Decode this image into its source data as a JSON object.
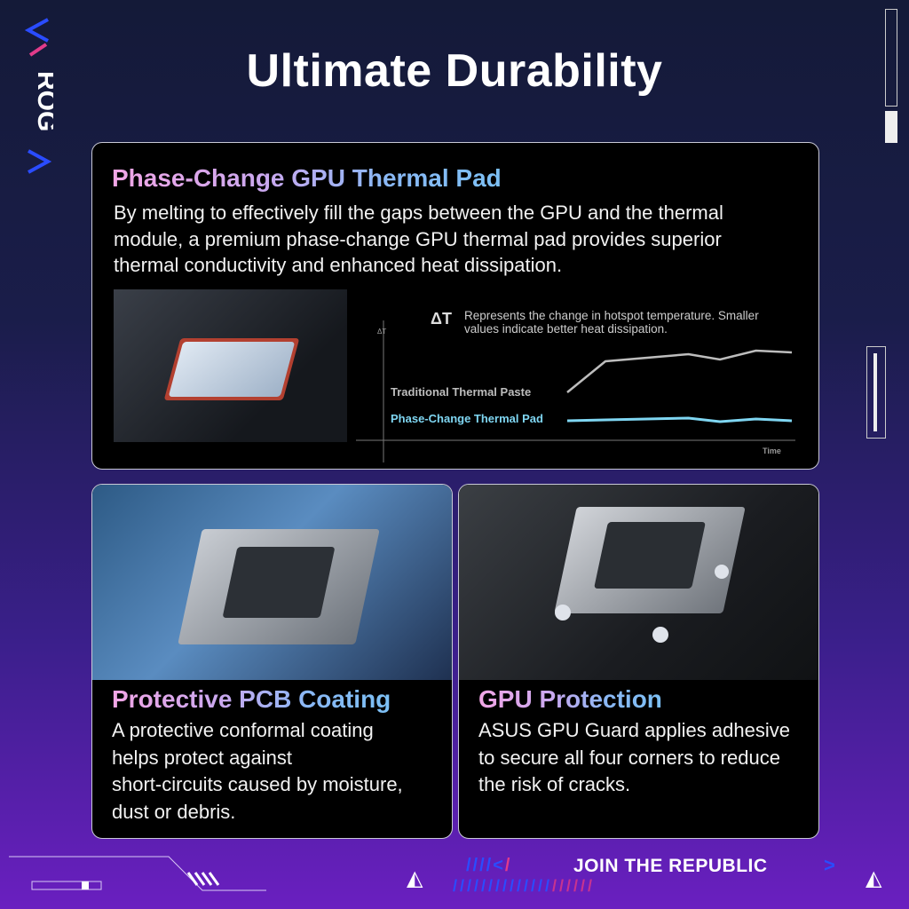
{
  "brand": {
    "logo_text": "ROG",
    "footer_slogan": "JOIN THE REPUBLIC"
  },
  "header": {
    "title": "Ultimate Durability"
  },
  "cards": [
    {
      "title_a": "Phase-Change GPU Thermal Pad",
      "body_lines": [
        "By melting to effectively fill the gaps between the GPU and the thermal",
        "module, a premium phase-change GPU thermal pad provides superior",
        "thermal conductivity and enhanced heat dissipation."
      ]
    },
    {
      "title_a": "Protective PCB Coating",
      "body_lines": [
        "A protective conformal coating",
        "helps protect against",
        "short-circuits caused by moisture,",
        "dust or debris."
      ]
    },
    {
      "title_a": "GPU Protection",
      "body_lines": [
        "ASUS GPU Guard applies adhesive",
        "to secure all four corners to reduce",
        "the risk of cracks."
      ]
    }
  ],
  "chart_data": {
    "type": "line",
    "legend_symbol": "ΔT",
    "note": "Represents the change in hotspot temperature. Smaller values indicate better heat dissipation.",
    "note_lines": [
      "Represents the change in hotspot temperature. Smaller",
      "values indicate better heat dissipation."
    ],
    "ylabel": "ΔT",
    "xlabel": "Time",
    "grid": false,
    "x": [
      0,
      17,
      54,
      68,
      84,
      100
    ],
    "series": [
      {
        "name": "Traditional Thermal Paste",
        "color": "#bdbdbd",
        "values": [
          54,
          89,
          97,
          91,
          101,
          99
        ]
      },
      {
        "name": "Phase-Change Thermal Pad",
        "color": "#7fd6f2",
        "values": [
          22,
          23,
          25,
          21,
          24,
          22
        ]
      }
    ]
  },
  "colors": {
    "accent_pink": "#f2a6e6",
    "accent_blue": "#7cc0f5",
    "card_bg": "#000000"
  }
}
